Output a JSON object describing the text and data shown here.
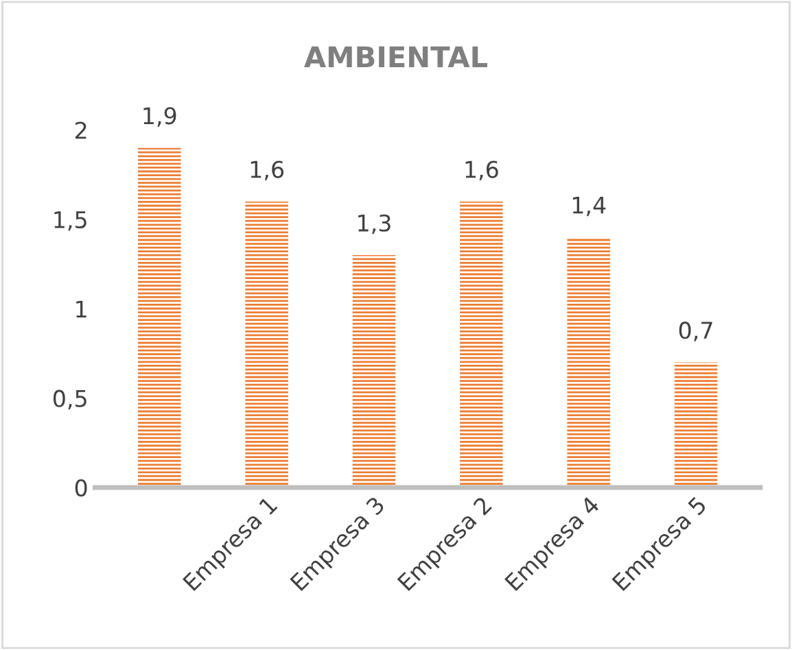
{
  "chart_data": {
    "type": "bar",
    "title": "AMBIENTAL",
    "categories": [
      null,
      "Empresa 1",
      "Empresa 3",
      "Empresa 2",
      "Empresa 4",
      "Empresa 5"
    ],
    "values": [
      1.9,
      1.6,
      1.3,
      1.6,
      1.4,
      0.7
    ],
    "value_labels": [
      "1,9",
      "1,6",
      "1,3",
      "1,6",
      "1,4",
      "0,7"
    ],
    "color": "#ed7d31",
    "ylim": [
      0,
      2
    ],
    "yticks": [
      0,
      {
        "value": 0.5,
        "label": "0,5"
      },
      1,
      {
        "value": 1.5,
        "label": "1,5"
      },
      2
    ],
    "grid": false,
    "legend": false
  }
}
